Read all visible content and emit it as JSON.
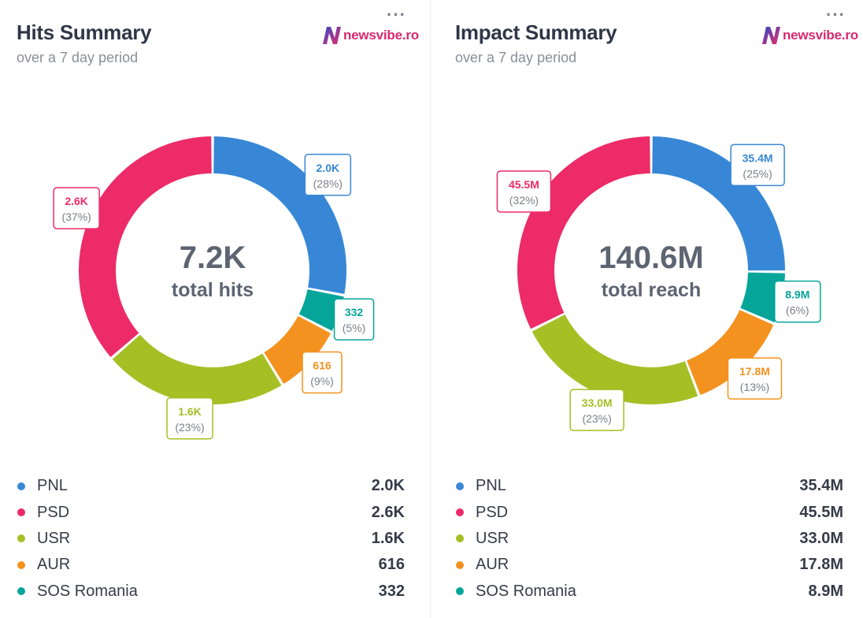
{
  "colors": {
    "pnl": "#3787d6",
    "psd": "#ec2b68",
    "usr": "#a5bf24",
    "aur": "#f3921f",
    "sos": "#05a59a"
  },
  "brand": {
    "name": "newsvibe.ro",
    "menu_glyph": "···"
  },
  "chart_data": [
    {
      "type": "pie",
      "title": "Hits Summary",
      "subtitle": "over a 7 day period",
      "center_value": "7.2K",
      "center_label": "total hits",
      "categories": [
        "PNL",
        "PSD",
        "USR",
        "AUR",
        "SOS Romania"
      ],
      "values": [
        2000,
        2600,
        1600,
        616,
        332
      ],
      "value_labels": [
        "2.0K",
        "2.6K",
        "1.6K",
        "616",
        "332"
      ],
      "percent_labels": [
        "(28%)",
        "(37%)",
        "(23%)",
        "(9%)",
        "(5%)"
      ],
      "slice_order": [
        "PNL",
        "SOS Romania",
        "AUR",
        "USR",
        "PSD"
      ],
      "legend_placement": "bottom"
    },
    {
      "type": "pie",
      "title": "Impact Summary",
      "subtitle": "over a 7 day period",
      "center_value": "140.6M",
      "center_label": "total reach",
      "categories": [
        "PNL",
        "PSD",
        "USR",
        "AUR",
        "SOS Romania"
      ],
      "values": [
        35.4,
        45.5,
        33.0,
        17.8,
        8.9
      ],
      "value_labels": [
        "35.4M",
        "45.5M",
        "33.0M",
        "17.8M",
        "8.9M"
      ],
      "percent_labels": [
        "(25%)",
        "(32%)",
        "(23%)",
        "(13%)",
        "(6%)"
      ],
      "slice_order": [
        "PNL",
        "SOS Romania",
        "AUR",
        "USR",
        "PSD"
      ],
      "legend_placement": "bottom"
    }
  ]
}
